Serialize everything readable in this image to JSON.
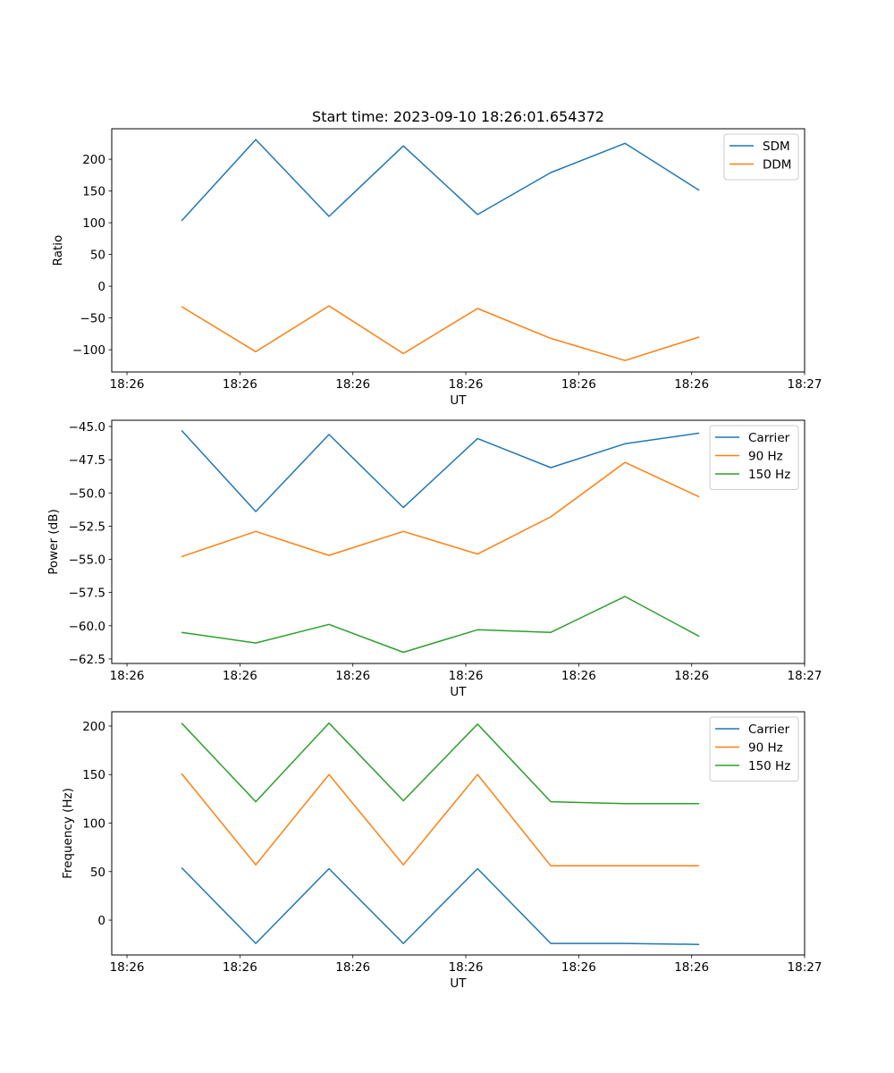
{
  "chart_data": [
    {
      "type": "line",
      "title": "Start time: 2023-09-10 18:26:01.654372",
      "xlabel": "UT",
      "ylabel": "Ratio",
      "x_units": "seconds after 18:26:00",
      "x": [
        4.83,
        11.4,
        17.89,
        24.47,
        31.04,
        37.53,
        44.1,
        50.67
      ],
      "xlim": [
        -1.35,
        60
      ],
      "xticks": [
        0,
        10,
        20,
        30,
        40,
        50,
        60
      ],
      "xtick_labels": [
        "18:26",
        "18:26",
        "18:26",
        "18:26",
        "18:26",
        "18:26",
        "18:27"
      ],
      "ylim": [
        -135,
        248
      ],
      "yticks": [
        -100,
        -50,
        0,
        50,
        100,
        150,
        200
      ],
      "ytick_labels": [
        "−100",
        "−50",
        "0",
        "50",
        "100",
        "150",
        "200"
      ],
      "legend": "top-right",
      "series": [
        {
          "name": "SDM",
          "color": "#1f77b4",
          "values": [
            103,
            231,
            110,
            221,
            113,
            179,
            225,
            151
          ]
        },
        {
          "name": "DDM",
          "color": "#ff7f0e",
          "values": [
            -32,
            -103,
            -31,
            -106,
            -35,
            -82,
            -117,
            -80
          ]
        }
      ]
    },
    {
      "type": "line",
      "title": "",
      "xlabel": "UT",
      "ylabel": "Power (dB)",
      "x_units": "seconds after 18:26:00",
      "x": [
        4.83,
        11.4,
        17.89,
        24.47,
        31.04,
        37.53,
        44.1,
        50.67
      ],
      "xlim": [
        -1.35,
        60
      ],
      "xticks": [
        0,
        10,
        20,
        30,
        40,
        50,
        60
      ],
      "xtick_labels": [
        "18:26",
        "18:26",
        "18:26",
        "18:26",
        "18:26",
        "18:26",
        "18:27"
      ],
      "ylim": [
        -62.84,
        -44.53
      ],
      "yticks": [
        -62.5,
        -60,
        -57.5,
        -55,
        -52.5,
        -50,
        -47.5,
        -45
      ],
      "ytick_labels": [
        "−62.5",
        "−60.0",
        "−57.5",
        "−55.0",
        "−52.5",
        "−50.0",
        "−47.5",
        "−45.0"
      ],
      "legend": "top-right",
      "series": [
        {
          "name": "Carrier",
          "color": "#1f77b4",
          "values": [
            -45.3,
            -51.4,
            -45.6,
            -51.1,
            -45.9,
            -48.1,
            -46.3,
            -45.5
          ]
        },
        {
          "name": "90 Hz",
          "color": "#ff7f0e",
          "values": [
            -54.8,
            -52.9,
            -54.7,
            -52.9,
            -54.6,
            -51.8,
            -47.7,
            -50.3
          ]
        },
        {
          "name": "150 Hz",
          "color": "#2ca02c",
          "values": [
            -60.5,
            -61.3,
            -59.9,
            -62.0,
            -60.3,
            -60.5,
            -57.8,
            -60.8
          ]
        }
      ]
    },
    {
      "type": "line",
      "title": "",
      "xlabel": "UT",
      "ylabel": "Frequency (Hz)",
      "x_units": "seconds after 18:26:00",
      "x": [
        4.83,
        11.4,
        17.89,
        24.47,
        31.04,
        37.53,
        44.1,
        50.67
      ],
      "xlim": [
        -1.35,
        60
      ],
      "xticks": [
        0,
        10,
        20,
        30,
        40,
        50,
        60
      ],
      "xtick_labels": [
        "18:26",
        "18:26",
        "18:26",
        "18:26",
        "18:26",
        "18:26",
        "18:27"
      ],
      "ylim": [
        -35.9,
        214.7
      ],
      "yticks": [
        0,
        50,
        100,
        150,
        200
      ],
      "ytick_labels": [
        "0",
        "50",
        "100",
        "150",
        "200"
      ],
      "legend": "top-right",
      "series": [
        {
          "name": "Carrier",
          "color": "#1f77b4",
          "values": [
            54,
            -24,
            53,
            -24,
            53,
            -24,
            -24,
            -25
          ]
        },
        {
          "name": "90 Hz",
          "color": "#ff7f0e",
          "values": [
            151,
            57,
            150,
            57,
            150,
            56,
            56,
            56
          ]
        },
        {
          "name": "150 Hz",
          "color": "#2ca02c",
          "values": [
            203,
            122,
            203,
            123,
            202,
            122,
            120,
            120
          ]
        }
      ]
    }
  ]
}
